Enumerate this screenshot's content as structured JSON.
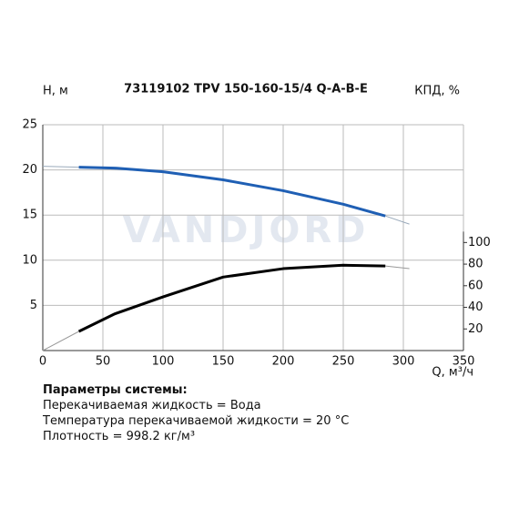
{
  "chart_data": {
    "type": "line",
    "title": "73119102 TPV 150-160-15/4 Q-A-B-E",
    "y_label": "H, м",
    "y2_label": "КПД, %",
    "x_label": "Q, м³/ч",
    "watermark": "VANDJORD",
    "xlim": [
      0,
      350
    ],
    "xticks": [
      0,
      50,
      100,
      150,
      200,
      250,
      300,
      350
    ],
    "ylim": [
      0,
      25
    ],
    "yticks": [
      5,
      10,
      15,
      20,
      25
    ],
    "y2lim": [
      0,
      209
    ],
    "y2ticks": [
      20,
      40,
      60,
      80,
      100
    ],
    "grid": true,
    "series": [
      {
        "color": "#9aaabb",
        "width": 1,
        "x": [
          0,
          30,
          100,
          150,
          200,
          250,
          285,
          305
        ],
        "values": [
          20.4,
          20.3,
          19.8,
          18.9,
          17.7,
          16.2,
          14.9,
          14.0
        ]
      },
      {
        "color": "#1f5fb4",
        "width": 3,
        "x": [
          30,
          60,
          100,
          150,
          200,
          250,
          285
        ],
        "values": [
          20.3,
          20.2,
          19.8,
          18.9,
          17.7,
          16.2,
          14.9
        ]
      },
      {
        "color": "#999999",
        "width": 1,
        "axis": "y2",
        "x": [
          0,
          30,
          60,
          100,
          150,
          200,
          250,
          285,
          305
        ],
        "values": [
          0,
          17.7,
          34,
          49.7,
          68,
          75.8,
          79,
          78.3,
          75.8
        ]
      },
      {
        "color": "#000000",
        "width": 3,
        "axis": "y2",
        "x": [
          30,
          60,
          100,
          150,
          200,
          250,
          285
        ],
        "values": [
          17.7,
          34,
          49.7,
          68,
          75.8,
          79,
          78.3
        ]
      }
    ]
  },
  "notes": {
    "heading": "Параметры системы:",
    "lines": [
      "Перекачиваемая жидкость = Вода",
      "Температура перекачиваемой жидкости = 20 °C",
      "Плотность = 998.2 кг/м³"
    ]
  }
}
